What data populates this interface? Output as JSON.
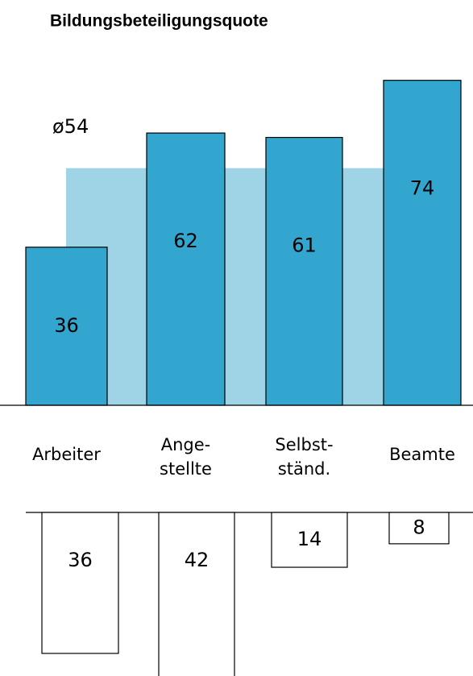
{
  "chart_data": {
    "type": "bar",
    "title": "Bildungsbeteiligungsquote",
    "categories": [
      [
        "Arbeiter"
      ],
      [
        "Ange-",
        "stellte"
      ],
      [
        "Selbst-",
        "ständ."
      ],
      [
        "Beamte"
      ]
    ],
    "values": [
      36,
      62,
      61,
      74
    ],
    "color": "#33a6d0",
    "average": {
      "value": 54,
      "label": "ø54"
    },
    "average_color": "#9fd4e6",
    "lower_values": [
      36,
      42,
      14,
      8
    ]
  }
}
